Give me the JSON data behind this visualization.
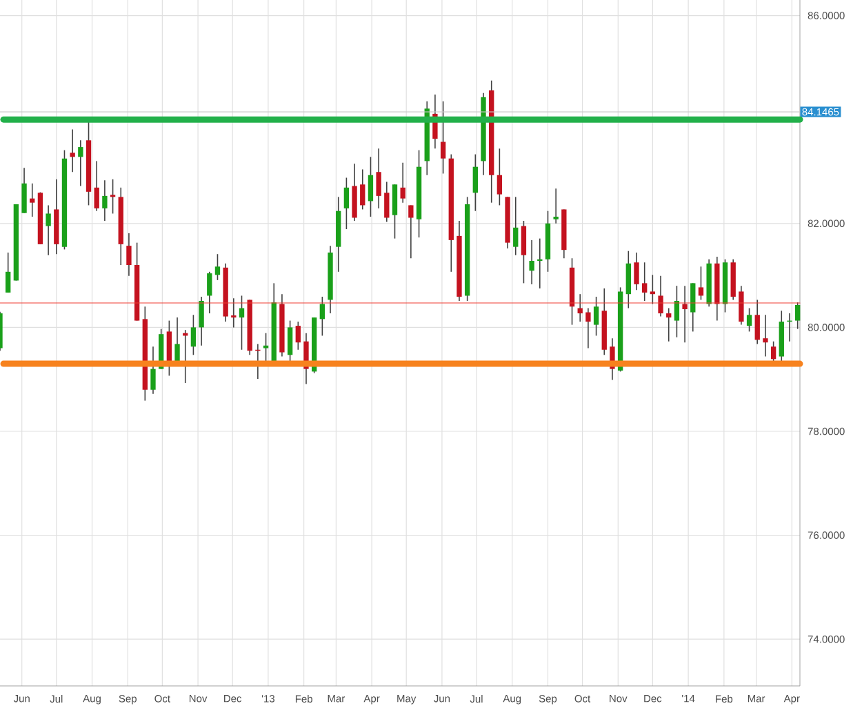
{
  "chart_data": {
    "type": "candlestick",
    "x": [
      "2012-05-13",
      "2012-05-20",
      "2012-05-27",
      "2012-06-03",
      "2012-06-10",
      "2012-06-17",
      "2012-06-24",
      "2012-07-01",
      "2012-07-08",
      "2012-07-15",
      "2012-07-22",
      "2012-07-29",
      "2012-08-05",
      "2012-08-12",
      "2012-08-19",
      "2012-08-26",
      "2012-09-02",
      "2012-09-09",
      "2012-09-16",
      "2012-09-23",
      "2012-09-30",
      "2012-10-07",
      "2012-10-14",
      "2012-10-21",
      "2012-10-28",
      "2012-11-04",
      "2012-11-11",
      "2012-11-18",
      "2012-11-25",
      "2012-12-02",
      "2012-12-09",
      "2012-12-16",
      "2012-12-23",
      "2012-12-30",
      "2013-01-06",
      "2013-01-13",
      "2013-01-20",
      "2013-01-27",
      "2013-02-03",
      "2013-02-10",
      "2013-02-17",
      "2013-02-24",
      "2013-03-03",
      "2013-03-10",
      "2013-03-17",
      "2013-03-24",
      "2013-03-31",
      "2013-04-07",
      "2013-04-14",
      "2013-04-21",
      "2013-04-28",
      "2013-05-05",
      "2013-05-12",
      "2013-05-19",
      "2013-05-26",
      "2013-06-02",
      "2013-06-09",
      "2013-06-16",
      "2013-06-23",
      "2013-06-30",
      "2013-07-07",
      "2013-07-14",
      "2013-07-21",
      "2013-07-28",
      "2013-08-04",
      "2013-08-11",
      "2013-08-18",
      "2013-08-25",
      "2013-09-01",
      "2013-09-08",
      "2013-09-15",
      "2013-09-22",
      "2013-09-29",
      "2013-10-06",
      "2013-10-13",
      "2013-10-20",
      "2013-10-27",
      "2013-11-03",
      "2013-11-10",
      "2013-11-17",
      "2013-11-24",
      "2013-12-01",
      "2013-12-08",
      "2013-12-15",
      "2013-12-22",
      "2013-12-29",
      "2014-01-05",
      "2014-01-12",
      "2014-01-19",
      "2014-01-26",
      "2014-02-02",
      "2014-02-09",
      "2014-02-16",
      "2014-02-23",
      "2014-03-02",
      "2014-03-09",
      "2014-03-16",
      "2014-03-23",
      "2014-03-30",
      "2014-04-06"
    ],
    "ohlc": [
      [
        79.6,
        80.3,
        79.55,
        80.27
      ],
      [
        80.67,
        81.44,
        80.67,
        81.07
      ],
      [
        80.9,
        82.37,
        80.9,
        82.37
      ],
      [
        82.2,
        83.07,
        82.2,
        82.77
      ],
      [
        82.48,
        82.77,
        82.13,
        82.4
      ],
      [
        82.59,
        82.6,
        81.6,
        81.6
      ],
      [
        81.95,
        82.35,
        81.39,
        82.19
      ],
      [
        82.27,
        82.85,
        81.41,
        81.6
      ],
      [
        81.55,
        83.41,
        81.5,
        83.25
      ],
      [
        83.36,
        83.81,
        82.99,
        83.28
      ],
      [
        83.28,
        83.6,
        82.72,
        83.47
      ],
      [
        83.6,
        83.97,
        82.35,
        82.61
      ],
      [
        82.69,
        83.2,
        82.24,
        82.29
      ],
      [
        82.29,
        82.83,
        82.05,
        82.53
      ],
      [
        82.55,
        82.85,
        82.19,
        82.51
      ],
      [
        82.51,
        82.69,
        81.2,
        81.6
      ],
      [
        81.57,
        81.81,
        80.99,
        81.2
      ],
      [
        81.2,
        81.63,
        80.13,
        80.13
      ],
      [
        80.16,
        80.4,
        78.59,
        78.8
      ],
      [
        78.8,
        79.63,
        78.72,
        79.2
      ],
      [
        79.2,
        79.97,
        79.2,
        79.87
      ],
      [
        79.92,
        80.13,
        79.07,
        79.33
      ],
      [
        79.33,
        80.19,
        79.33,
        79.68
      ],
      [
        79.89,
        79.95,
        78.93,
        79.84
      ],
      [
        79.63,
        80.24,
        79.47,
        80.0
      ],
      [
        80.0,
        80.59,
        79.65,
        80.51
      ],
      [
        80.61,
        81.07,
        80.27,
        81.04
      ],
      [
        81.01,
        81.41,
        80.91,
        81.17
      ],
      [
        81.15,
        81.23,
        80.11,
        80.21
      ],
      [
        80.23,
        80.56,
        80.0,
        80.19
      ],
      [
        80.19,
        80.61,
        79.57,
        80.37
      ],
      [
        80.53,
        80.53,
        79.47,
        79.55
      ],
      [
        79.57,
        79.68,
        79.01,
        79.55
      ],
      [
        79.6,
        79.89,
        79.33,
        79.65
      ],
      [
        79.33,
        80.85,
        79.33,
        80.48
      ],
      [
        80.45,
        80.64,
        79.44,
        79.52
      ],
      [
        79.47,
        80.13,
        79.33,
        80.0
      ],
      [
        80.03,
        80.11,
        79.57,
        79.71
      ],
      [
        79.73,
        79.89,
        78.91,
        79.2
      ],
      [
        79.15,
        80.19,
        79.12,
        80.19
      ],
      [
        80.16,
        80.59,
        79.84,
        80.45
      ],
      [
        80.53,
        81.57,
        80.27,
        81.44
      ],
      [
        81.55,
        82.51,
        81.07,
        82.24
      ],
      [
        82.29,
        82.88,
        81.89,
        82.69
      ],
      [
        82.72,
        83.15,
        82.05,
        82.11
      ],
      [
        82.75,
        83.04,
        82.27,
        82.35
      ],
      [
        82.43,
        83.28,
        82.13,
        82.93
      ],
      [
        82.99,
        83.44,
        82.29,
        82.53
      ],
      [
        82.59,
        82.8,
        82.03,
        82.11
      ],
      [
        82.16,
        82.75,
        81.71,
        82.75
      ],
      [
        82.69,
        83.17,
        82.4,
        82.48
      ],
      [
        82.35,
        82.35,
        81.33,
        82.11
      ],
      [
        82.08,
        83.41,
        81.73,
        83.09
      ],
      [
        83.2,
        84.35,
        82.93,
        84.21
      ],
      [
        84.11,
        84.48,
        83.44,
        83.63
      ],
      [
        83.57,
        84.35,
        82.96,
        83.25
      ],
      [
        83.25,
        83.33,
        81.07,
        81.68
      ],
      [
        81.76,
        82.05,
        80.51,
        80.59
      ],
      [
        80.61,
        82.51,
        80.51,
        82.37
      ],
      [
        82.59,
        83.33,
        82.24,
        83.09
      ],
      [
        83.2,
        84.51,
        82.93,
        84.43
      ],
      [
        84.56,
        84.75,
        82.4,
        82.93
      ],
      [
        82.93,
        83.44,
        82.35,
        82.56
      ],
      [
        82.51,
        82.51,
        81.52,
        81.63
      ],
      [
        81.55,
        82.51,
        81.39,
        81.92
      ],
      [
        81.95,
        82.05,
        80.85,
        81.39
      ],
      [
        81.09,
        81.68,
        80.83,
        81.28
      ],
      [
        81.28,
        81.71,
        80.75,
        81.31
      ],
      [
        81.31,
        82.24,
        81.07,
        82.0
      ],
      [
        82.08,
        82.67,
        82.0,
        82.13
      ],
      [
        82.27,
        82.27,
        81.33,
        81.49
      ],
      [
        81.15,
        81.33,
        80.05,
        80.4
      ],
      [
        80.37,
        80.64,
        80.11,
        80.27
      ],
      [
        80.29,
        80.37,
        79.6,
        80.11
      ],
      [
        80.05,
        80.59,
        79.84,
        80.4
      ],
      [
        80.32,
        80.75,
        79.47,
        79.57
      ],
      [
        79.63,
        79.79,
        78.99,
        79.2
      ],
      [
        79.17,
        80.77,
        79.15,
        80.69
      ],
      [
        80.64,
        81.47,
        80.37,
        81.23
      ],
      [
        81.25,
        81.44,
        80.72,
        80.83
      ],
      [
        80.85,
        81.25,
        80.51,
        80.67
      ],
      [
        80.69,
        81.01,
        80.45,
        80.64
      ],
      [
        80.61,
        80.99,
        80.21,
        80.27
      ],
      [
        80.27,
        80.37,
        79.73,
        80.19
      ],
      [
        80.13,
        80.8,
        79.81,
        80.51
      ],
      [
        80.45,
        80.8,
        79.71,
        80.35
      ],
      [
        80.29,
        80.85,
        79.92,
        80.85
      ],
      [
        80.77,
        81.17,
        80.53,
        80.61
      ],
      [
        80.45,
        81.31,
        80.4,
        81.23
      ],
      [
        81.23,
        81.36,
        80.13,
        80.45
      ],
      [
        80.45,
        81.31,
        80.29,
        81.25
      ],
      [
        81.25,
        81.31,
        80.53,
        80.59
      ],
      [
        80.69,
        80.8,
        80.05,
        80.11
      ],
      [
        80.03,
        80.37,
        79.92,
        80.24
      ],
      [
        80.24,
        80.53,
        79.68,
        79.76
      ],
      [
        79.79,
        80.24,
        79.44,
        79.71
      ],
      [
        79.63,
        79.73,
        79.33,
        79.39
      ],
      [
        79.44,
        80.32,
        79.33,
        80.11
      ],
      [
        80.11,
        80.27,
        79.73,
        80.13
      ],
      [
        80.13,
        80.48,
        79.97,
        80.43
      ]
    ],
    "colors": [
      "#1aa01a",
      "#1aa01a",
      "#1aa01a",
      "#1aa01a",
      "#c4121f",
      "#c4121f",
      "#1aa01a",
      "#c4121f",
      "#1aa01a",
      "#c4121f",
      "#1aa01a",
      "#c4121f",
      "#c4121f",
      "#1aa01a",
      "#c4121f",
      "#c4121f",
      "#c4121f",
      "#c4121f",
      "#c4121f",
      "#1aa01a",
      "#1aa01a",
      "#c4121f",
      "#1aa01a",
      "#c4121f",
      "#1aa01a",
      "#1aa01a",
      "#1aa01a",
      "#1aa01a",
      "#c4121f",
      "#c4121f",
      "#1aa01a",
      "#c4121f",
      "#c4121f",
      "#1aa01a",
      "#1aa01a",
      "#c4121f",
      "#1aa01a",
      "#c4121f",
      "#c4121f",
      "#1aa01a",
      "#1aa01a",
      "#1aa01a",
      "#1aa01a",
      "#1aa01a",
      "#c4121f",
      "#c4121f",
      "#1aa01a",
      "#c4121f",
      "#c4121f",
      "#1aa01a",
      "#c4121f",
      "#c4121f",
      "#1aa01a",
      "#1aa01a",
      "#c4121f",
      "#c4121f",
      "#c4121f",
      "#c4121f",
      "#1aa01a",
      "#1aa01a",
      "#1aa01a",
      "#c4121f",
      "#c4121f",
      "#c4121f",
      "#1aa01a",
      "#c4121f",
      "#1aa01a",
      "#1aa01a",
      "#1aa01a",
      "#1aa01a",
      "#c4121f",
      "#c4121f",
      "#c4121f",
      "#c4121f",
      "#1aa01a",
      "#c4121f",
      "#c4121f",
      "#1aa01a",
      "#1aa01a",
      "#c4121f",
      "#c4121f",
      "#c4121f",
      "#c4121f",
      "#c4121f",
      "#1aa01a",
      "#c4121f",
      "#1aa01a",
      "#c4121f",
      "#1aa01a",
      "#c4121f",
      "#1aa01a",
      "#c4121f",
      "#c4121f",
      "#1aa01a",
      "#c4121f",
      "#c4121f",
      "#c4121f",
      "#1aa01a",
      "#1aa01a",
      "#1aa01a"
    ],
    "xlim": [
      "2012-05-13",
      "2014-04-08"
    ],
    "ylim": [
      73.1,
      86.3
    ],
    "xticks": [
      {
        "value": "2012-06-01",
        "label": "Jun"
      },
      {
        "value": "2012-07-01",
        "label": "Jul"
      },
      {
        "value": "2012-08-01",
        "label": "Aug"
      },
      {
        "value": "2012-09-01",
        "label": "Sep"
      },
      {
        "value": "2012-10-01",
        "label": "Oct"
      },
      {
        "value": "2012-11-01",
        "label": "Nov"
      },
      {
        "value": "2012-12-01",
        "label": "Dec"
      },
      {
        "value": "2013-01-01",
        "label": "'13"
      },
      {
        "value": "2013-02-01",
        "label": "Feb"
      },
      {
        "value": "2013-03-01",
        "label": "Mar"
      },
      {
        "value": "2013-04-01",
        "label": "Apr"
      },
      {
        "value": "2013-05-01",
        "label": "May"
      },
      {
        "value": "2013-06-01",
        "label": "Jun"
      },
      {
        "value": "2013-07-01",
        "label": "Jul"
      },
      {
        "value": "2013-08-01",
        "label": "Aug"
      },
      {
        "value": "2013-09-01",
        "label": "Sep"
      },
      {
        "value": "2013-10-01",
        "label": "Oct"
      },
      {
        "value": "2013-11-01",
        "label": "Nov"
      },
      {
        "value": "2013-12-01",
        "label": "Dec"
      },
      {
        "value": "2014-01-01",
        "label": "'14"
      },
      {
        "value": "2014-02-01",
        "label": "Feb"
      },
      {
        "value": "2014-03-01",
        "label": "Mar"
      },
      {
        "value": "2014-04-01",
        "label": "Apr"
      }
    ],
    "yticks": [
      {
        "value": 74,
        "label": "74.0000"
      },
      {
        "value": 76,
        "label": "76.0000"
      },
      {
        "value": 78,
        "label": "78.0000"
      },
      {
        "value": 80,
        "label": "80.0000"
      },
      {
        "value": 82,
        "label": "82.0000"
      },
      {
        "value": 84,
        "label": null
      },
      {
        "value": 86,
        "label": "86.0000"
      }
    ],
    "grid": true,
    "ref_lines": [
      {
        "axis": "y",
        "value": 84.1465,
        "label": "84.1465",
        "color": "#c8c8c8"
      },
      {
        "axis": "y",
        "value": 84.0,
        "label": null,
        "color": "#22b04a"
      },
      {
        "axis": "y",
        "value": 80.47,
        "label": null,
        "color": "#f03c32"
      },
      {
        "axis": "y",
        "value": 79.3,
        "label": null,
        "color": "#f7821e"
      }
    ]
  }
}
